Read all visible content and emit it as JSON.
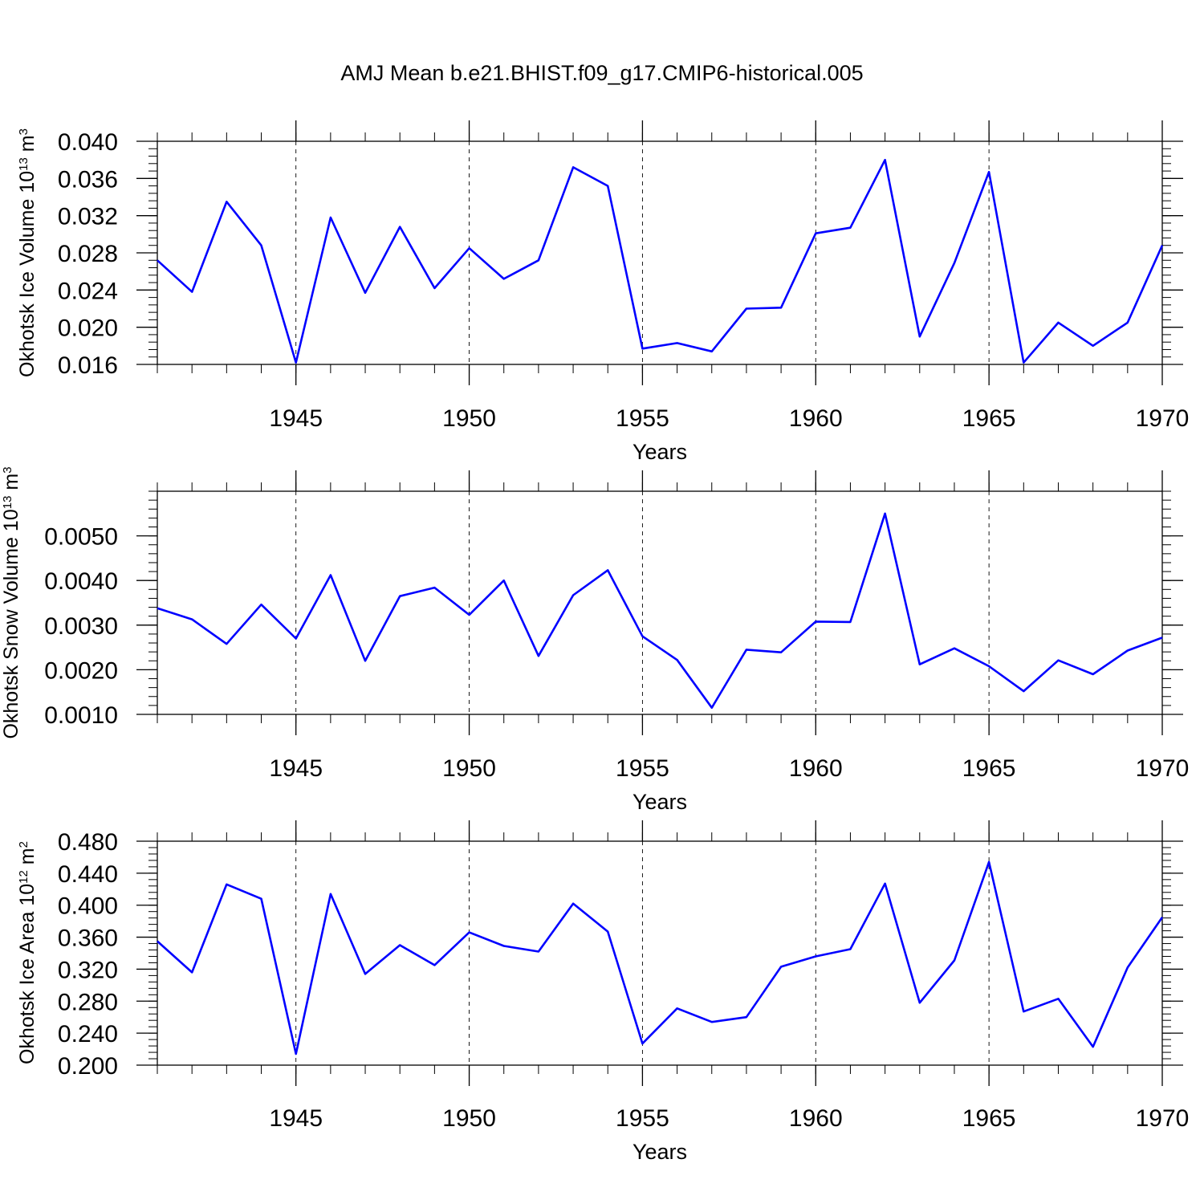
{
  "chart_data": [
    {
      "type": "line",
      "title": "AMJ Mean b.e21.BHIST.f09_g17.CMIP6-historical.005",
      "xlabel": "Years",
      "ylabel": {
        "text": "Okhotsk Ice Volume 10",
        "exp": "13",
        "unit_text": " m",
        "unit_exp": "3"
      },
      "xlim": [
        1941,
        1970
      ],
      "ylim": [
        0.016,
        0.04
      ],
      "xticks": [
        1945,
        1950,
        1955,
        1960,
        1965,
        1970
      ],
      "xtick_labels": [
        "1945",
        "1950",
        "1955",
        "1960",
        "1965",
        "1970"
      ],
      "yticks": [
        0.016,
        0.02,
        0.024,
        0.028,
        0.032,
        0.036,
        0.04
      ],
      "ytick_labels": [
        "0.016",
        "0.020",
        "0.024",
        "0.028",
        "0.032",
        "0.036",
        "0.040"
      ],
      "vgrid": [
        1945,
        1950,
        1955,
        1960,
        1965
      ],
      "line_color": "#0000ff",
      "x": [
        1941,
        1942,
        1943,
        1944,
        1945,
        1946,
        1947,
        1948,
        1949,
        1950,
        1951,
        1952,
        1953,
        1954,
        1955,
        1956,
        1957,
        1958,
        1959,
        1960,
        1961,
        1962,
        1963,
        1964,
        1965,
        1966,
        1967,
        1968,
        1969,
        1970
      ],
      "values": [
        0.0272,
        0.0238,
        0.0335,
        0.0288,
        0.0162,
        0.0318,
        0.0237,
        0.0308,
        0.0242,
        0.0285,
        0.0252,
        0.0272,
        0.0372,
        0.0352,
        0.0177,
        0.0183,
        0.0174,
        0.022,
        0.0221,
        0.0301,
        0.0307,
        0.038,
        0.019,
        0.0269,
        0.0367,
        0.0162,
        0.0205,
        0.018,
        0.0205,
        0.0288
      ]
    },
    {
      "type": "line",
      "title": "",
      "xlabel": "Years",
      "ylabel": {
        "text": "Okhotsk Snow Volume 10",
        "exp": "13",
        "unit_text": " m",
        "unit_exp": "3"
      },
      "xlim": [
        1941,
        1970
      ],
      "ylim": [
        0.001,
        0.006
      ],
      "xticks": [
        1945,
        1950,
        1955,
        1960,
        1965,
        1970
      ],
      "xtick_labels": [
        "1945",
        "1950",
        "1955",
        "1960",
        "1965",
        "1970"
      ],
      "yticks": [
        0.001,
        0.002,
        0.003,
        0.004,
        0.005
      ],
      "ytick_labels": [
        "0.0010",
        "0.0020",
        "0.0030",
        "0.0040",
        "0.0050"
      ],
      "vgrid": [
        1945,
        1950,
        1955,
        1960,
        1965
      ],
      "line_color": "#0000ff",
      "x": [
        1941,
        1942,
        1943,
        1944,
        1945,
        1946,
        1947,
        1948,
        1949,
        1950,
        1951,
        1952,
        1953,
        1954,
        1955,
        1956,
        1957,
        1958,
        1959,
        1960,
        1961,
        1962,
        1963,
        1964,
        1965,
        1966,
        1967,
        1968,
        1969,
        1970
      ],
      "values": [
        0.00338,
        0.00313,
        0.00258,
        0.00346,
        0.0027,
        0.00412,
        0.0022,
        0.00365,
        0.00384,
        0.00323,
        0.004,
        0.00231,
        0.00367,
        0.00423,
        0.00275,
        0.00222,
        0.00115,
        0.00245,
        0.00239,
        0.00308,
        0.00307,
        0.0055,
        0.00212,
        0.00248,
        0.00208,
        0.00152,
        0.00221,
        0.0019,
        0.00243,
        0.00272
      ]
    },
    {
      "type": "line",
      "title": "",
      "xlabel": "Years",
      "ylabel": {
        "text": "Okhotsk Ice Area 10",
        "exp": "12",
        "unit_text": " m",
        "unit_exp": "2"
      },
      "xlim": [
        1941,
        1970
      ],
      "ylim": [
        0.2,
        0.48
      ],
      "xticks": [
        1945,
        1950,
        1955,
        1960,
        1965,
        1970
      ],
      "xtick_labels": [
        "1945",
        "1950",
        "1955",
        "1960",
        "1965",
        "1970"
      ],
      "yticks": [
        0.2,
        0.24,
        0.28,
        0.32,
        0.36,
        0.4,
        0.44,
        0.48
      ],
      "ytick_labels": [
        "0.200",
        "0.240",
        "0.280",
        "0.320",
        "0.360",
        "0.400",
        "0.440",
        "0.480"
      ],
      "vgrid": [
        1945,
        1950,
        1955,
        1960,
        1965
      ],
      "line_color": "#0000ff",
      "x": [
        1941,
        1942,
        1943,
        1944,
        1945,
        1946,
        1947,
        1948,
        1949,
        1950,
        1951,
        1952,
        1953,
        1954,
        1955,
        1956,
        1957,
        1958,
        1959,
        1960,
        1961,
        1962,
        1963,
        1964,
        1965,
        1966,
        1967,
        1968,
        1969,
        1970
      ],
      "values": [
        0.355,
        0.316,
        0.426,
        0.408,
        0.214,
        0.414,
        0.314,
        0.35,
        0.325,
        0.366,
        0.349,
        0.342,
        0.402,
        0.367,
        0.227,
        0.271,
        0.254,
        0.26,
        0.323,
        0.336,
        0.345,
        0.427,
        0.278,
        0.331,
        0.454,
        0.267,
        0.283,
        0.223,
        0.322,
        0.385
      ]
    }
  ]
}
